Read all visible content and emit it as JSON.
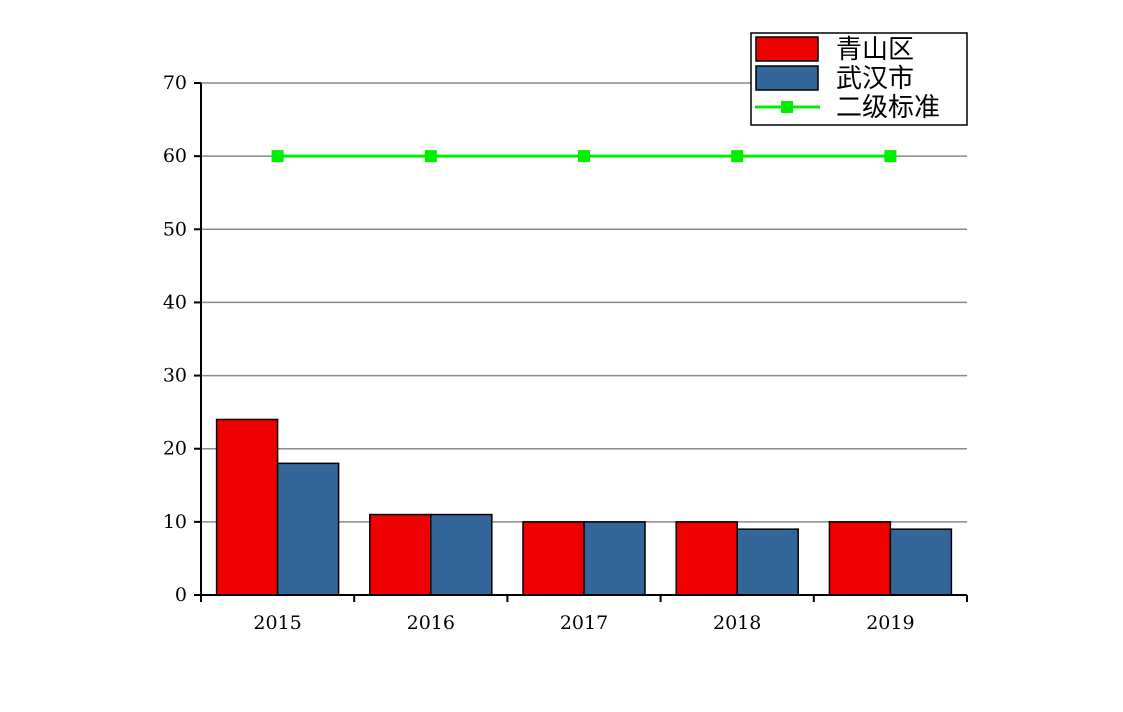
{
  "chart_data": {
    "type": "bar",
    "categories": [
      "2015",
      "2016",
      "2017",
      "2018",
      "2019"
    ],
    "series": [
      {
        "name": "青山区",
        "kind": "bar",
        "color": "#ee0000",
        "values": [
          24,
          11,
          10,
          10,
          10
        ]
      },
      {
        "name": "武汉市",
        "kind": "bar",
        "color": "#336699",
        "values": [
          18,
          11,
          10,
          9,
          9
        ]
      },
      {
        "name": "二级标准",
        "kind": "line",
        "marker": "square",
        "color": "#00ee00",
        "values": [
          60,
          60,
          60,
          60,
          60
        ]
      }
    ],
    "y_ticks": [
      "0",
      "10",
      "20",
      "30",
      "40",
      "50",
      "60",
      "70"
    ],
    "ylim": [
      0,
      70
    ],
    "grid": true,
    "legend_position": "top-right",
    "title": "",
    "xlabel": "",
    "ylabel": ""
  }
}
